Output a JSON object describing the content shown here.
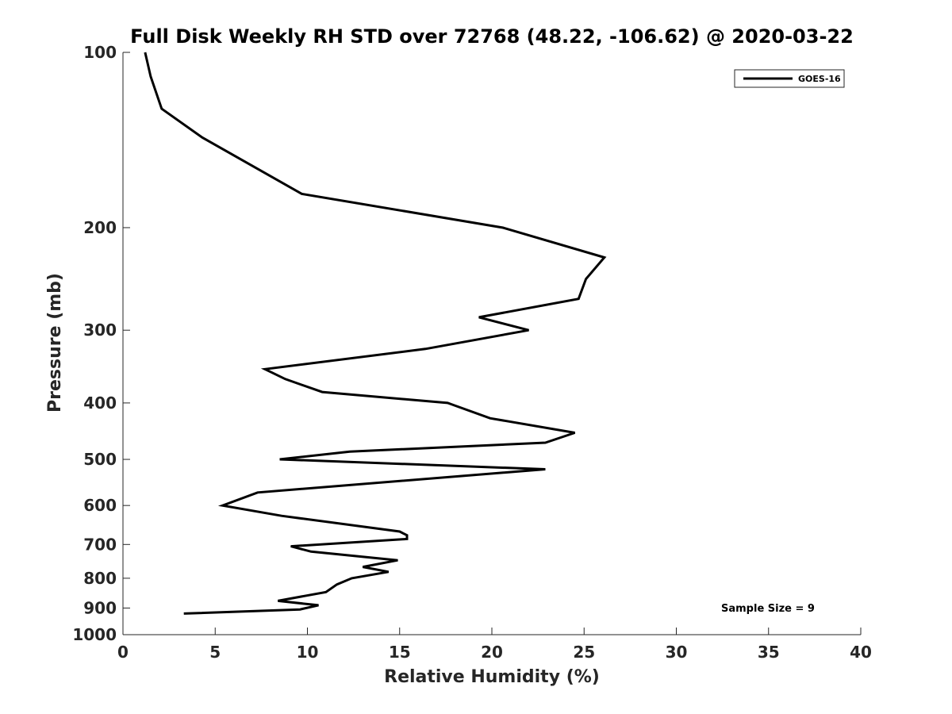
{
  "chart_data": {
    "type": "line",
    "title": "Full Disk Weekly RH STD over 72768 (48.22, -106.62) @ 2020-03-22",
    "xlabel": "Relative Humidity (%)",
    "ylabel": "Pressure (mb)",
    "xlim": [
      0,
      40
    ],
    "ylim": [
      100,
      1000
    ],
    "y_scale": "log",
    "y_reversed": true,
    "grid": false,
    "legend_position": "top-right",
    "x_ticks": [
      0,
      5,
      10,
      15,
      20,
      25,
      30,
      35,
      40
    ],
    "x_tick_labels": [
      "0",
      "5",
      "10",
      "15",
      "20",
      "25",
      "30",
      "35",
      "40"
    ],
    "y_ticks": [
      100,
      200,
      300,
      400,
      500,
      600,
      700,
      800,
      900,
      1000
    ],
    "y_tick_labels": [
      "100",
      "200",
      "300",
      "400",
      "500",
      "600",
      "700",
      "800",
      "900",
      "1000"
    ],
    "series": [
      {
        "name": "GOES-16",
        "color": "#000000",
        "x": [
          1.2,
          1.5,
          2.1,
          4.3,
          9.7,
          20.6,
          26.1,
          25.1,
          24.7,
          19.3,
          22.0,
          16.4,
          7.7,
          8.8,
          10.8,
          17.6,
          19.9,
          24.5,
          22.9,
          12.3,
          8.5,
          22.9,
          7.3,
          5.4,
          8.6,
          15.0,
          15.4,
          15.4,
          9.1,
          10.2,
          14.9,
          13.0,
          14.4,
          12.4,
          11.6,
          11.0,
          8.4,
          10.6,
          9.6,
          3.3
        ],
        "y": [
          100,
          110,
          125,
          140,
          175,
          200,
          225,
          245,
          265,
          285,
          300,
          323,
          350,
          364,
          383,
          400,
          425,
          450,
          468,
          485,
          500,
          520,
          570,
          600,
          625,
          665,
          675,
          685,
          705,
          720,
          745,
          765,
          780,
          800,
          820,
          845,
          875,
          890,
          905,
          920
        ]
      }
    ],
    "annotations": [
      {
        "text": "Sample Size = 9"
      }
    ]
  }
}
